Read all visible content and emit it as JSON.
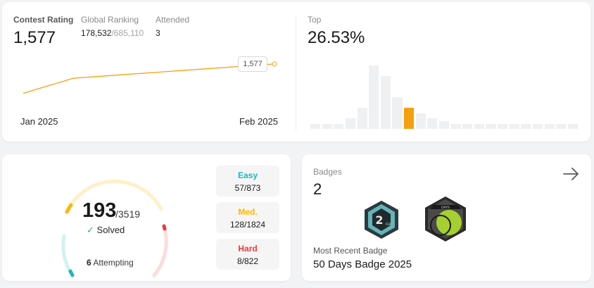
{
  "rating": {
    "label": "Contest Rating",
    "value": "1,577",
    "global_ranking": {
      "label": "Global Ranking",
      "value": "178,532",
      "total": "/685,110"
    },
    "attended": {
      "label": "Attended",
      "value": "3"
    },
    "chart_data": {
      "type": "line",
      "x": [
        "Jan 2025",
        "Feb 2025"
      ],
      "points": [
        1509,
        1544,
        1577
      ],
      "xlabel_start": "Jan 2025",
      "xlabel_end": "Feb 2025",
      "tooltip": "1,577",
      "color": "#f5a00f"
    }
  },
  "top": {
    "label": "Top",
    "value": "26.53%",
    "chart_data": {
      "type": "bar",
      "values": [
        1,
        1,
        1,
        2,
        4,
        12,
        10,
        6,
        4,
        3,
        2,
        1.5,
        1,
        1,
        1,
        1,
        1,
        1,
        1,
        1,
        1,
        1,
        1
      ],
      "highlight_index": 8,
      "highlight_color": "#f5a00f",
      "base_color": "#eff0f1"
    }
  },
  "solved": {
    "count": "193",
    "total": "/3519",
    "check": "✓",
    "label": "Solved",
    "attempting_count": "6",
    "attempting_label": "Attempting",
    "ring": {
      "easy_color": "#1cbaba",
      "medium_color": "#ffb700",
      "hard_color": "#f63737"
    }
  },
  "difficulty": [
    {
      "name": "Easy",
      "value": "57/873",
      "color": "#1cbaba"
    },
    {
      "name": "Med.",
      "value": "128/1824",
      "color": "#ffb700"
    },
    {
      "name": "Hard",
      "value": "8/822",
      "color": "#f63737"
    }
  ],
  "badges": {
    "label": "Badges",
    "count": "2",
    "recent_label": "Most Recent Badge",
    "recent_name": "50 Days Badge 2025",
    "badge_1_text": "2",
    "badge_1_sub": "FEB",
    "badge_2_text": "DAYS"
  }
}
